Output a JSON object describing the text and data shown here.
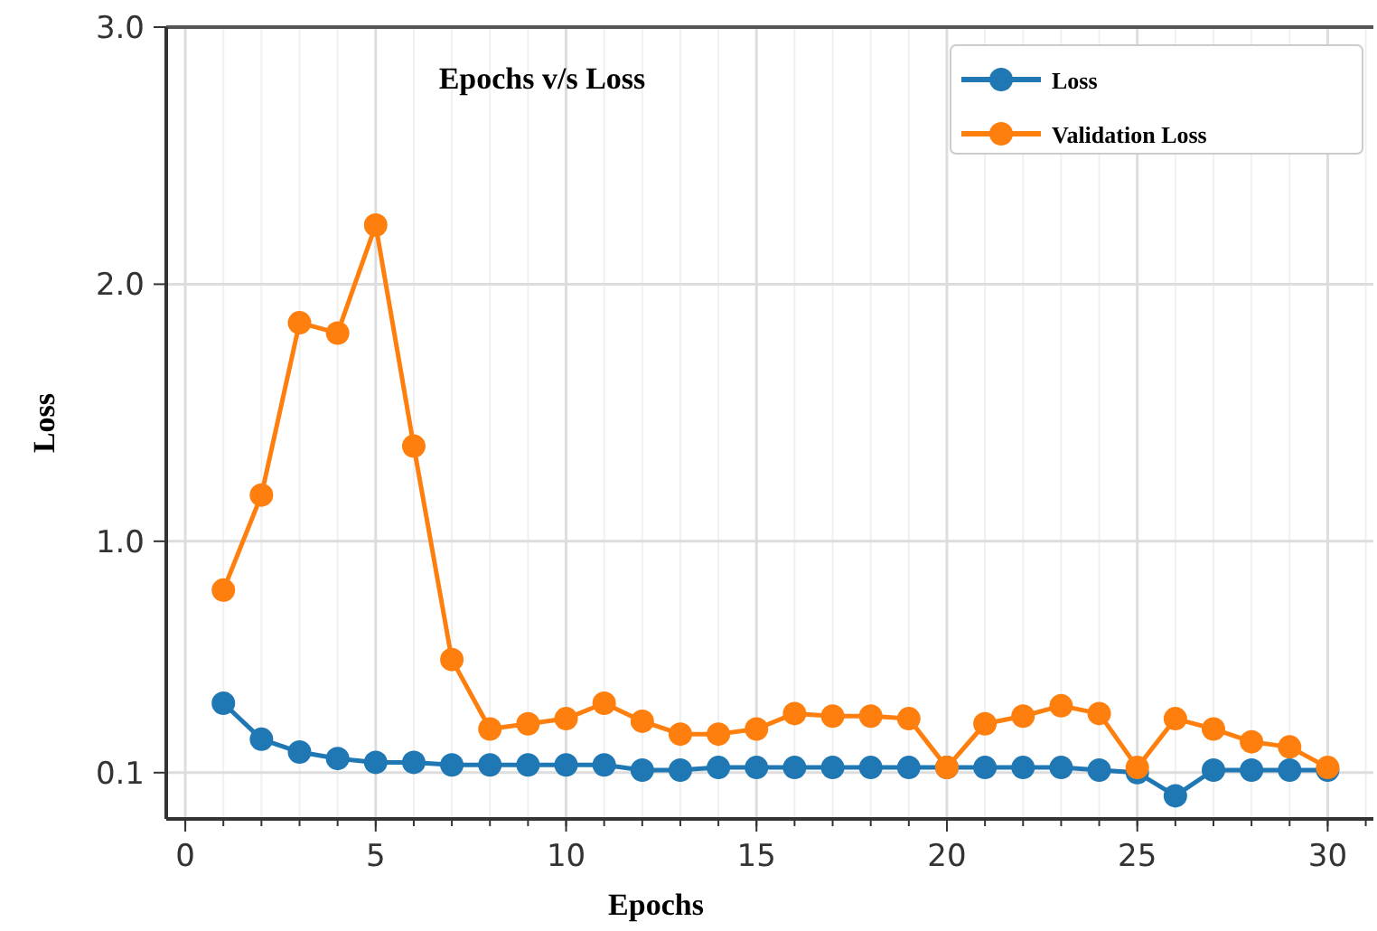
{
  "chart_data": {
    "type": "line",
    "title": "Epochs v/s Loss",
    "xlabel": "Epochs",
    "ylabel": "Loss",
    "x": [
      1,
      2,
      3,
      4,
      5,
      6,
      7,
      8,
      9,
      10,
      11,
      12,
      13,
      14,
      15,
      16,
      17,
      18,
      19,
      20,
      21,
      22,
      23,
      24,
      25,
      26,
      27,
      28,
      29,
      30
    ],
    "series": [
      {
        "name": "Loss",
        "color": "#1f77b4",
        "values": [
          0.37,
          0.23,
          0.18,
          0.155,
          0.14,
          0.14,
          0.13,
          0.13,
          0.13,
          0.13,
          0.13,
          0.11,
          0.11,
          0.12,
          0.12,
          0.12,
          0.12,
          0.12,
          0.12,
          0.12,
          0.12,
          0.12,
          0.12,
          0.11,
          0.1,
          0.01,
          0.11,
          0.11,
          0.11,
          0.11
        ]
      },
      {
        "name": "Validation Loss",
        "color": "#ff7f0e",
        "values": [
          0.81,
          1.18,
          1.85,
          1.81,
          2.23,
          1.37,
          0.54,
          0.27,
          0.29,
          0.31,
          0.37,
          0.3,
          0.25,
          0.25,
          0.27,
          0.33,
          0.32,
          0.32,
          0.31,
          0.12,
          0.29,
          0.32,
          0.36,
          0.33,
          0.12,
          0.31,
          0.27,
          0.22,
          0.2,
          0.12
        ]
      }
    ],
    "xlim": [
      -0.5,
      31.2
    ],
    "xticks": [
      0,
      5,
      10,
      15,
      20,
      25,
      30
    ],
    "ylim": [
      -0.08,
      3.0
    ],
    "yticks": [
      {
        "value": 0.1,
        "label": "0.1"
      },
      {
        "value": 1,
        "label": "1.0"
      },
      {
        "value": 2,
        "label": "2.0"
      },
      {
        "value": 3,
        "label": "3.0"
      }
    ],
    "grid": true,
    "legend": "top right",
    "marker": "circle",
    "line_style": "solid"
  }
}
